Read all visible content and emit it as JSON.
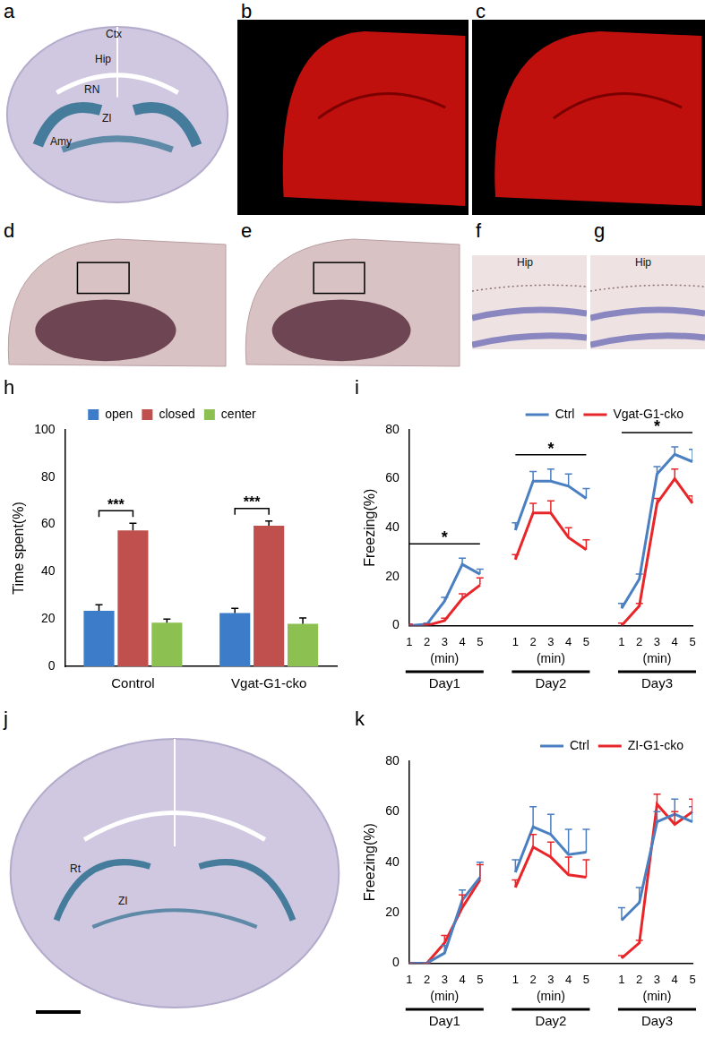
{
  "image_panels": [
    {
      "panel": "a",
      "labels": [
        "Ctx",
        "Hip",
        "RN",
        "ZI",
        "Amy"
      ]
    },
    {
      "panel": "b"
    },
    {
      "panel": "c"
    },
    {
      "panel": "d"
    },
    {
      "panel": "e"
    },
    {
      "panel": "f",
      "labels": [
        "Hip"
      ]
    },
    {
      "panel": "g",
      "labels": [
        "Hip"
      ]
    },
    {
      "panel": "j",
      "labels": [
        "Rt",
        "ZI"
      ]
    }
  ],
  "chart_data": [
    {
      "panel": "h",
      "type": "bar",
      "categories": [
        "Control",
        "Vgat-G1-cko"
      ],
      "y_label": "Time spent(%)",
      "ylim": [
        0,
        100
      ],
      "yticks": [
        0,
        20,
        40,
        60,
        80,
        100
      ],
      "grid": false,
      "legend": "top",
      "series": [
        {
          "name": "open",
          "color": "#3d7cc9",
          "values": [
            23.5,
            22.5
          ],
          "errors": [
            2.5,
            2
          ]
        },
        {
          "name": "closed",
          "color": "#c0504d",
          "values": [
            57.5,
            59.5
          ],
          "errors": [
            3,
            2
          ]
        },
        {
          "name": "center",
          "color": "#8cc152",
          "values": [
            18.5,
            18
          ],
          "errors": [
            1.5,
            2.5
          ]
        }
      ],
      "annotations": [
        {
          "text": "***",
          "category": 0,
          "series": [
            0,
            1
          ]
        },
        {
          "text": "***",
          "category": 1,
          "series": [
            0,
            1
          ]
        }
      ]
    },
    {
      "panel": "i",
      "type": "line",
      "categories": [
        "1",
        "2",
        "3",
        "4",
        "5",
        null,
        "1",
        "2",
        "3",
        "4",
        "5",
        null,
        "1",
        "2",
        "3",
        "4",
        "5"
      ],
      "x_label": "(min)",
      "groups": [
        "Day1",
        "Day2",
        "Day3"
      ],
      "y_label": "Freezing(%)",
      "ylim": [
        0,
        80
      ],
      "yticks": [
        0,
        20,
        40,
        60,
        80
      ],
      "grid": false,
      "legend": "top-right",
      "series": [
        {
          "name": "Vgat-G1-cko",
          "color": "#e8262a",
          "values": [
            0,
            0,
            2,
            11,
            16.5,
            null,
            27,
            46,
            46,
            36,
            31,
            null,
            0,
            8,
            50,
            60,
            50
          ],
          "errors": [
            0.5,
            0.5,
            1,
            2,
            3,
            null,
            2,
            4,
            5,
            4,
            4,
            null,
            1,
            1,
            2,
            4,
            3
          ]
        },
        {
          "name": "Ctrl",
          "color": "#4a7fc1",
          "values": [
            0,
            0.5,
            10,
            25,
            21,
            null,
            39,
            59,
            59,
            57,
            52,
            null,
            7,
            19,
            62,
            70,
            67
          ],
          "errors": [
            0.5,
            0.5,
            1.5,
            2.5,
            2,
            null,
            3,
            4,
            5,
            5,
            4,
            null,
            2,
            2,
            3,
            3,
            5
          ]
        }
      ],
      "annotations": [
        {
          "text": "*",
          "group": 0
        },
        {
          "text": "*",
          "group": 1
        },
        {
          "text": "*",
          "group": 2
        }
      ]
    },
    {
      "panel": "k",
      "type": "line",
      "categories": [
        "1",
        "2",
        "3",
        "4",
        "5",
        null,
        "1",
        "2",
        "3",
        "4",
        "5",
        null,
        "1",
        "2",
        "3",
        "4",
        "5"
      ],
      "x_label": "(min)",
      "groups": [
        "Day1",
        "Day2",
        "Day3"
      ],
      "y_label": "Freezing(%)",
      "ylim": [
        0,
        80
      ],
      "yticks": [
        0,
        20,
        40,
        60,
        80
      ],
      "grid": false,
      "legend": "top-right",
      "series": [
        {
          "name": "ZI-G1-cko",
          "color": "#e8262a",
          "values": [
            0,
            0,
            8,
            22,
            33,
            null,
            30,
            46,
            42,
            35,
            34,
            null,
            2,
            8,
            63,
            55,
            60
          ],
          "errors": [
            0,
            0,
            3,
            5,
            6,
            null,
            3,
            5,
            6,
            7,
            7,
            null,
            1,
            1,
            4,
            5,
            5
          ]
        },
        {
          "name": "Ctrl",
          "color": "#4a7fc1",
          "values": [
            0,
            0,
            4,
            25,
            34,
            null,
            36,
            54,
            51,
            43,
            44,
            null,
            17,
            24,
            56,
            59,
            56
          ],
          "errors": [
            0,
            0,
            3,
            4,
            6,
            null,
            5,
            8,
            8,
            10,
            9,
            null,
            5,
            6,
            4,
            6,
            6
          ]
        }
      ]
    }
  ]
}
